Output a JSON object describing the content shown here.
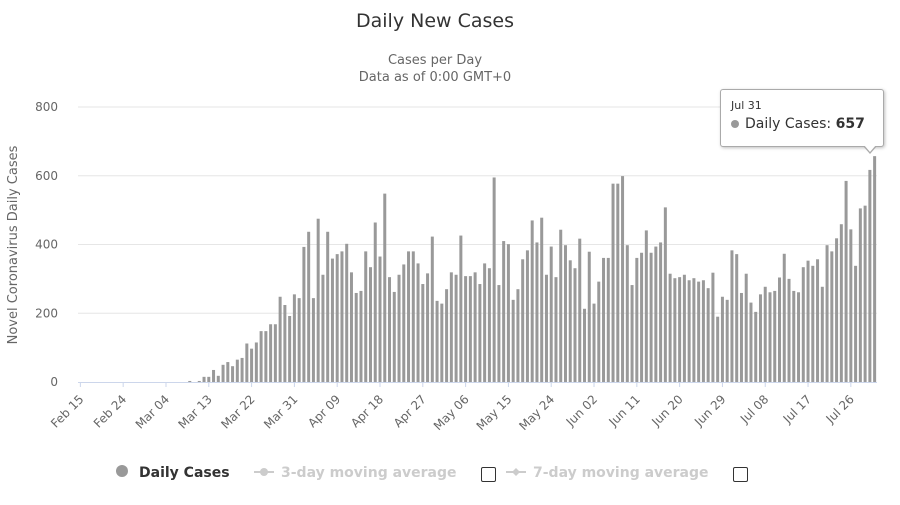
{
  "chart_data": {
    "type": "bar",
    "title": "Daily New Cases",
    "subtitle": [
      "Cases per Day",
      "Data as of 0:00 GMT+0"
    ],
    "ylabel": "Novel Coronavirus Daily Cases",
    "xlabel": "",
    "ylim": [
      0,
      800
    ],
    "yticks": [
      "0",
      "200",
      "400",
      "600",
      "800"
    ],
    "grid": true,
    "x_tick_labels": [
      "Feb 15",
      "Feb 24",
      "Mar 04",
      "Mar 13",
      "Mar 22",
      "Mar 31",
      "Apr 09",
      "Apr 18",
      "Apr 27",
      "May 06",
      "May 15",
      "May 24",
      "Jun 02",
      "Jun 11",
      "Jun 20",
      "Jun 29",
      "Jul 08",
      "Jul 17",
      "Jul 26"
    ],
    "x_range": [
      "Feb 15",
      "Jul 31"
    ],
    "series": [
      {
        "name": "Daily Cases",
        "color": "#999999",
        "values": [
          0,
          0,
          0,
          0,
          0,
          0,
          0,
          0,
          0,
          0,
          0,
          0,
          0,
          0,
          0,
          0,
          0,
          0,
          0,
          0,
          0,
          0,
          0,
          3,
          0,
          3,
          15,
          15,
          35,
          18,
          50,
          58,
          46,
          65,
          70,
          112,
          97,
          115,
          148,
          148,
          168,
          168,
          248,
          224,
          192,
          255,
          244,
          393,
          437,
          244,
          475,
          312,
          437,
          359,
          372,
          380,
          402,
          319,
          259,
          265,
          380,
          334,
          464,
          365,
          548,
          305,
          262,
          312,
          342,
          380,
          380,
          345,
          285,
          316,
          423,
          236,
          228,
          270,
          319,
          312,
          426,
          308,
          308,
          319,
          285,
          345,
          331,
          595,
          282,
          410,
          401,
          239,
          270,
          357,
          383,
          470,
          406,
          478,
          312,
          394,
          305,
          443,
          398,
          354,
          331,
          417,
          213,
          379,
          228,
          292,
          361,
          361,
          577,
          577,
          599,
          398,
          282,
          361,
          376,
          441,
          376,
          394,
          406,
          508,
          315,
          302,
          305,
          312,
          296,
          302,
          292,
          296,
          273,
          318,
          190,
          248,
          239,
          383,
          372,
          259,
          315,
          231,
          204,
          255,
          277,
          261,
          265,
          304,
          373,
          300,
          265,
          261,
          334,
          353,
          338,
          357,
          277,
          398,
          380,
          418,
          459,
          585,
          444,
          338,
          505,
          513,
          617,
          657
        ]
      }
    ],
    "legend": {
      "placement": "bottom",
      "items": [
        {
          "label": "Daily Cases",
          "enabled": true,
          "color": "#999999"
        },
        {
          "label": "3-day moving average",
          "enabled": false,
          "color": "#cccccc"
        },
        {
          "label": "7-day moving average",
          "enabled": false,
          "color": "#cccccc"
        }
      ]
    },
    "tooltip": {
      "date": "Jul 31",
      "label": "Daily Cases: ",
      "value": "657"
    }
  }
}
